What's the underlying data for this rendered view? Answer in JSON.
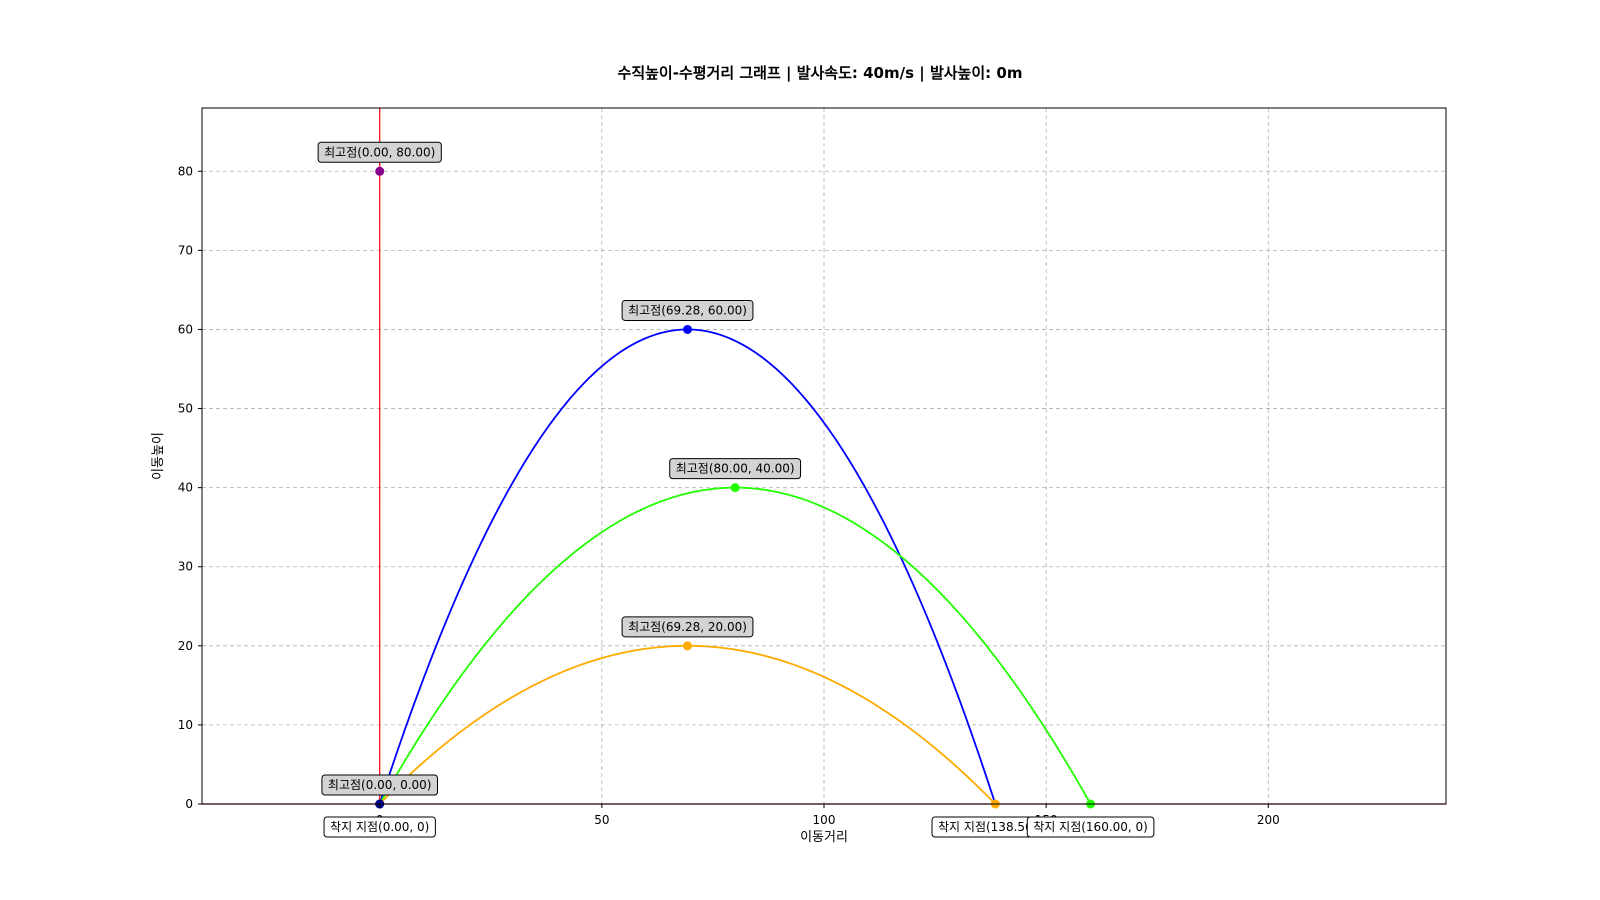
{
  "chart_data": {
    "type": "line",
    "title": "수직높이-수평거리 그래프 | 발사속도: 40m/s | 발사높이: 0m",
    "xlabel": "이동거리",
    "ylabel": "이동높이",
    "xlim": [
      -40,
      240
    ],
    "ylim": [
      0,
      88
    ],
    "xticks": [
      0,
      50,
      100,
      150,
      200
    ],
    "yticks": [
      0,
      10,
      20,
      30,
      40,
      50,
      60,
      70,
      80
    ],
    "grid": true,
    "series": [
      {
        "color": "#ff0000",
        "kind": "vertical",
        "x": 0,
        "peak": [
          0,
          80
        ],
        "land": [
          0,
          0
        ]
      },
      {
        "color": "#0000ff",
        "kind": "parabola",
        "peak": [
          69.28,
          60
        ],
        "land": [
          138.56,
          0
        ]
      },
      {
        "color": "#22ff00",
        "kind": "parabola",
        "peak": [
          80,
          40
        ],
        "land": [
          160,
          0
        ]
      },
      {
        "color": "#ffaa00",
        "kind": "parabola",
        "peak": [
          69.28,
          20
        ],
        "land": [
          138.56,
          0
        ]
      },
      {
        "color": "#8b0000",
        "kind": "flat",
        "peak": [
          0,
          0
        ],
        "land": [
          0,
          0
        ]
      }
    ],
    "peak_markers": [
      {
        "x": 0,
        "y": 80,
        "color": "#8b008b",
        "label": "최고점(0.00, 80.00)"
      },
      {
        "x": 69.28,
        "y": 60,
        "color": "#0000ff",
        "label": "최고점(69.28, 60.00)"
      },
      {
        "x": 80,
        "y": 40,
        "color": "#22ff00",
        "label": "최고점(80.00, 40.00)"
      },
      {
        "x": 69.28,
        "y": 20,
        "color": "#ffaa00",
        "label": "최고점(69.28, 20.00)"
      },
      {
        "x": 0,
        "y": 0,
        "color": "#00008b",
        "label": "최고점(0.00, 0.00)"
      }
    ],
    "landing_markers": [
      {
        "x": 0,
        "color": "#00008b",
        "label": "착지 지점(0.00, 0)"
      },
      {
        "x": 138.56,
        "color": "#ffaa00",
        "label": "착지 지점(138.56, 0)"
      },
      {
        "x": 160,
        "color": "#22ff00",
        "label": "착지 지점(160.00, 0)"
      }
    ]
  }
}
